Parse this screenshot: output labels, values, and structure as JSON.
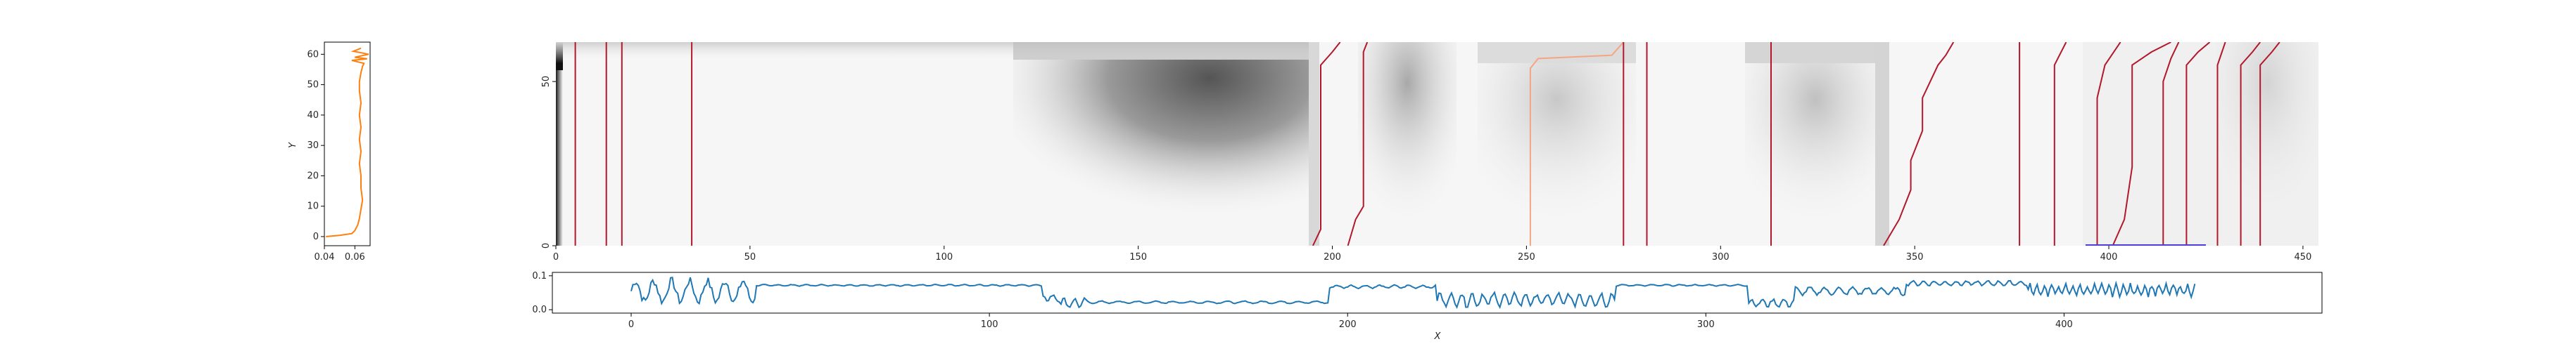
{
  "chart_data": [
    {
      "id": "left-profile",
      "type": "line",
      "xlabel": "",
      "ylabel": "Y",
      "xlim": [
        0.04,
        0.07
      ],
      "ylim": [
        -3,
        64
      ],
      "xticks": [
        0.04,
        0.06
      ],
      "xtick_labels": [
        "0.04",
        "0.06"
      ],
      "yticks": [
        0,
        10,
        20,
        30,
        40,
        50,
        60
      ],
      "ytick_labels": [
        "0",
        "10",
        "20",
        "30",
        "40",
        "50",
        "60"
      ],
      "series": [
        {
          "color": "#ff7f0e",
          "points": [
            [
              0.041,
              0
            ],
            [
              0.05,
              0.4
            ],
            [
              0.058,
              1
            ],
            [
              0.06,
              2
            ],
            [
              0.062,
              4
            ],
            [
              0.063,
              6
            ],
            [
              0.064,
              9
            ],
            [
              0.065,
              12
            ],
            [
              0.064,
              16
            ],
            [
              0.064,
              20
            ],
            [
              0.063,
              24
            ],
            [
              0.064,
              28
            ],
            [
              0.063,
              32
            ],
            [
              0.064,
              36
            ],
            [
              0.063,
              40
            ],
            [
              0.064,
              44
            ],
            [
              0.063,
              48
            ],
            [
              0.063,
              51
            ],
            [
              0.064,
              54
            ],
            [
              0.065,
              56
            ],
            [
              0.066,
              57
            ],
            [
              0.058,
              58
            ],
            [
              0.068,
              58.5
            ],
            [
              0.06,
              59
            ],
            [
              0.069,
              60
            ],
            [
              0.059,
              61
            ],
            [
              0.064,
              62
            ]
          ]
        }
      ]
    },
    {
      "id": "heatmap",
      "type": "heatmap",
      "colormap": "gray_r",
      "xlim": [
        0,
        454
      ],
      "ylim": [
        0,
        62
      ],
      "xticks": [
        0,
        50,
        100,
        150,
        200,
        250,
        300,
        350,
        400,
        450
      ],
      "xtick_labels": [
        "0",
        "50",
        "100",
        "150",
        "200",
        "250",
        "300",
        "350",
        "400",
        "450"
      ],
      "yticks": [
        0,
        50
      ],
      "ytick_labels": [
        "0",
        "50"
      ],
      "series": [
        {
          "color": "#b2182b",
          "points": [
            [
              5,
              0
            ],
            [
              5,
              62
            ]
          ]
        },
        {
          "color": "#b2182b",
          "points": [
            [
              13,
              0
            ],
            [
              13,
              62
            ]
          ]
        },
        {
          "color": "#b2182b",
          "points": [
            [
              17,
              0
            ],
            [
              17,
              62
            ]
          ]
        },
        {
          "color": "#b2182b",
          "points": [
            [
              35,
              0
            ],
            [
              35,
              62
            ]
          ]
        },
        {
          "color": "#b2182b",
          "points": [
            [
              195,
              0
            ],
            [
              197,
              5
            ],
            [
              197,
              55
            ],
            [
              200,
              59
            ],
            [
              202,
              62
            ]
          ]
        },
        {
          "color": "#b2182b",
          "points": [
            [
              204,
              0
            ],
            [
              206,
              8
            ],
            [
              208,
              12
            ],
            [
              208,
              59
            ],
            [
              209,
              62
            ]
          ]
        },
        {
          "color": "#f4a582",
          "points": [
            [
              251,
              0
            ],
            [
              251,
              54
            ],
            [
              253,
              57
            ],
            [
              272,
              58
            ],
            [
              275,
              62
            ]
          ]
        },
        {
          "color": "#b2182b",
          "points": [
            [
              275,
              0
            ],
            [
              275,
              62
            ]
          ]
        },
        {
          "color": "#b2182b",
          "points": [
            [
              281,
              0
            ],
            [
              281,
              62
            ]
          ]
        },
        {
          "color": "#b2182b",
          "points": [
            [
              313,
              0
            ],
            [
              313,
              62
            ]
          ]
        },
        {
          "color": "#b2182b",
          "points": [
            [
              342,
              0
            ],
            [
              346,
              8
            ],
            [
              349,
              17
            ],
            [
              349,
              26
            ],
            [
              352,
              35
            ],
            [
              352,
              45
            ],
            [
              356,
              55
            ],
            [
              358,
              58
            ],
            [
              360,
              62
            ]
          ]
        },
        {
          "color": "#b2182b",
          "points": [
            [
              377,
              0
            ],
            [
              377,
              62
            ]
          ]
        },
        {
          "color": "#b2182b",
          "points": [
            [
              386,
              0
            ],
            [
              386,
              55
            ],
            [
              389,
              62
            ]
          ]
        },
        {
          "color": "#b2182b",
          "points": [
            [
              397,
              0
            ],
            [
              397,
              45
            ],
            [
              399,
              55
            ],
            [
              403,
              62
            ]
          ]
        },
        {
          "color": "#b2182b",
          "points": [
            [
              401,
              0
            ],
            [
              404,
              8
            ],
            [
              406,
              24
            ],
            [
              406,
              55
            ],
            [
              411,
              59
            ],
            [
              416,
              62
            ]
          ]
        },
        {
          "color": "#b2182b",
          "points": [
            [
              414,
              0
            ],
            [
              414,
              50
            ],
            [
              416,
              57
            ],
            [
              418,
              62
            ]
          ]
        },
        {
          "color": "#b2182b",
          "points": [
            [
              420,
              0
            ],
            [
              420,
              55
            ],
            [
              423,
              59
            ],
            [
              426,
              62
            ]
          ]
        },
        {
          "color": "#b2182b",
          "points": [
            [
              428,
              0
            ],
            [
              428,
              55
            ],
            [
              430,
              62
            ]
          ]
        },
        {
          "color": "#b2182b",
          "points": [
            [
              434,
              0
            ],
            [
              434,
              55
            ],
            [
              437,
              59
            ],
            [
              439,
              62
            ]
          ]
        },
        {
          "color": "#b2182b",
          "points": [
            [
              439,
              0
            ],
            [
              439,
              55
            ],
            [
              442,
              59
            ],
            [
              444,
              62
            ]
          ]
        }
      ],
      "band": {
        "color": "#4a3fd6",
        "x_start": 394,
        "x_end": 425,
        "y": 0
      }
    },
    {
      "id": "bottom-signal",
      "type": "line",
      "xlabel": "X",
      "ylabel": "",
      "xlim": [
        -22,
        472
      ],
      "ylim": [
        -0.01,
        0.11
      ],
      "xticks": [
        0,
        100,
        200,
        300,
        400
      ],
      "xtick_labels": [
        "0",
        "100",
        "200",
        "300",
        "400"
      ],
      "yticks": [
        0.0,
        0.1
      ],
      "ytick_labels": [
        "0.0",
        "0.1"
      ],
      "series": [
        {
          "color": "#1f77b4",
          "segments": [
            {
              "x_start": 0,
              "x_end": 35,
              "base": 0.055,
              "amp": 0.03,
              "period": 5
            },
            {
              "x_start": 35,
              "x_end": 115,
              "base": 0.072,
              "amp": 0.002,
              "period": 4
            },
            {
              "x_start": 115,
              "x_end": 120,
              "base": 0.035,
              "amp": 0.01,
              "period": 3
            },
            {
              "x_start": 120,
              "x_end": 128,
              "base": 0.02,
              "amp": 0.012,
              "period": 3
            },
            {
              "x_start": 128,
              "x_end": 195,
              "base": 0.022,
              "amp": 0.003,
              "period": 5
            },
            {
              "x_start": 195,
              "x_end": 225,
              "base": 0.068,
              "amp": 0.004,
              "period": 4
            },
            {
              "x_start": 225,
              "x_end": 275,
              "base": 0.03,
              "amp": 0.018,
              "period": 3
            },
            {
              "x_start": 275,
              "x_end": 312,
              "base": 0.072,
              "amp": 0.002,
              "period": 4
            },
            {
              "x_start": 312,
              "x_end": 325,
              "base": 0.02,
              "amp": 0.01,
              "period": 3
            },
            {
              "x_start": 325,
              "x_end": 356,
              "base": 0.055,
              "amp": 0.01,
              "period": 4
            },
            {
              "x_start": 356,
              "x_end": 390,
              "base": 0.078,
              "amp": 0.006,
              "period": 3
            },
            {
              "x_start": 390,
              "x_end": 437,
              "base": 0.058,
              "amp": 0.015,
              "period": 2
            }
          ]
        }
      ]
    }
  ]
}
